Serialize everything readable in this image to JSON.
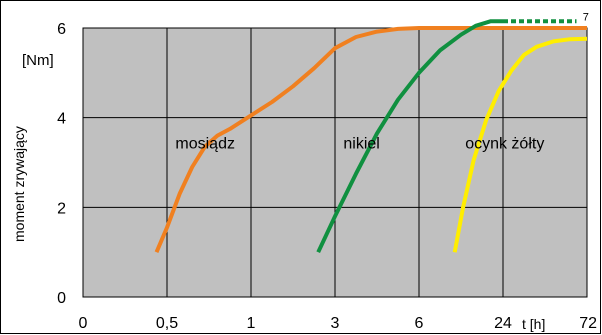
{
  "chart_data": {
    "type": "line",
    "ylabel": "moment zrywający",
    "yunit": "[Nm]",
    "xlabel": "t [h]",
    "x_ticks": [
      "0",
      "0,5",
      "1",
      "3",
      "6",
      "24",
      "72"
    ],
    "y_ticks": [
      "0",
      "2",
      "4",
      "6"
    ],
    "ylim": [
      0,
      6
    ],
    "grid": true,
    "colors": {
      "plot_bg": "#c0c0c0",
      "grid": "#000000"
    },
    "series": [
      {
        "name": "mosiądz",
        "color": "#f08020",
        "points": [
          [
            1.75,
            1.0
          ],
          [
            2.0,
            1.55
          ],
          [
            2.3,
            2.3
          ],
          [
            2.6,
            2.9
          ],
          [
            2.9,
            3.35
          ],
          [
            3.2,
            3.6
          ],
          [
            3.5,
            3.75
          ],
          [
            4.0,
            4.05
          ],
          [
            4.5,
            4.35
          ],
          [
            5.0,
            4.7
          ],
          [
            5.5,
            5.1
          ],
          [
            6.0,
            5.55
          ],
          [
            6.5,
            5.8
          ],
          [
            7.0,
            5.92
          ],
          [
            7.5,
            5.98
          ],
          [
            8.0,
            6.0
          ],
          [
            9.0,
            6.0
          ],
          [
            10.0,
            6.0
          ],
          [
            11.0,
            6.0
          ],
          [
            12.0,
            6.0
          ]
        ]
      },
      {
        "name": "nikiel",
        "color": "#109040",
        "points": [
          [
            5.6,
            1.0
          ],
          [
            6.0,
            1.8
          ],
          [
            6.5,
            2.75
          ],
          [
            7.0,
            3.65
          ],
          [
            7.5,
            4.4
          ],
          [
            8.0,
            5.0
          ],
          [
            8.5,
            5.5
          ],
          [
            9.0,
            5.85
          ],
          [
            9.35,
            6.05
          ],
          [
            9.7,
            6.15
          ],
          [
            10.0,
            6.15
          ]
        ]
      },
      {
        "name": "nikiel",
        "color": "#109040",
        "style": "dashed",
        "points": [
          [
            10.0,
            6.15
          ],
          [
            11.75,
            6.15
          ]
        ]
      },
      {
        "name": "ocynk żółty",
        "color": "#ffee00",
        "points": [
          [
            8.85,
            1.0
          ],
          [
            9.05,
            2.0
          ],
          [
            9.3,
            3.05
          ],
          [
            9.6,
            3.95
          ],
          [
            9.9,
            4.6
          ],
          [
            10.2,
            5.05
          ],
          [
            10.5,
            5.4
          ],
          [
            10.8,
            5.58
          ],
          [
            11.2,
            5.7
          ],
          [
            11.6,
            5.75
          ],
          [
            12.0,
            5.76
          ]
        ]
      }
    ],
    "labels": [
      {
        "text": "mosiądz",
        "x": 2.2,
        "y": 3.45
      },
      {
        "text": "nikiel",
        "x": 6.2,
        "y": 3.45
      },
      {
        "text": "ocynk żółty",
        "x": 9.1,
        "y": 3.45
      },
      {
        "text": "7",
        "x": 11.9,
        "y": 6.15
      }
    ]
  }
}
